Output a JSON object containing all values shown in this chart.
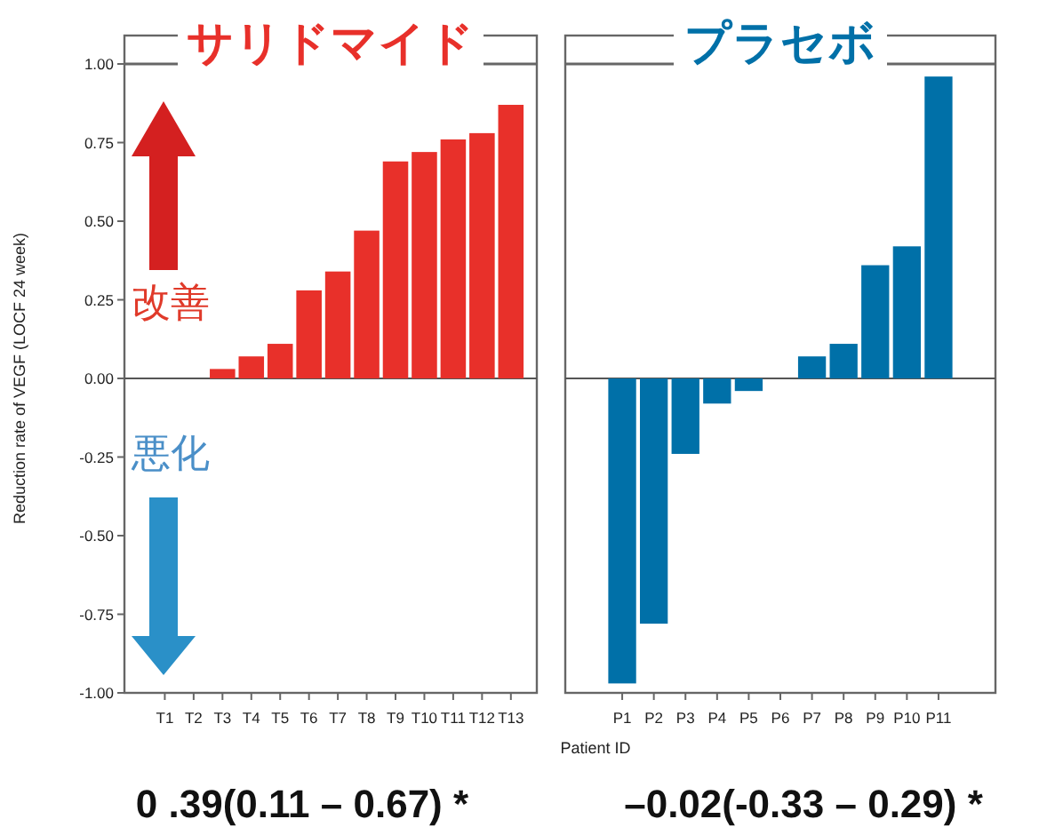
{
  "chart_data": [
    {
      "type": "bar",
      "title": "サリドマイド",
      "ylabel": "Reduction rate of VEGF (LOCF 24 week)",
      "xlabel": "Patient ID",
      "categories": [
        "T1",
        "T2",
        "T3",
        "T4",
        "T5",
        "T6",
        "T7",
        "T8",
        "T9",
        "T10",
        "T11",
        "T12",
        "T13"
      ],
      "values": [
        0,
        0,
        0.03,
        0.07,
        0.11,
        0.28,
        0.34,
        0.47,
        0.69,
        0.72,
        0.76,
        0.78,
        0.87
      ],
      "color": "#e8302a",
      "ylim": [
        -1,
        1
      ],
      "yticks": [
        {
          "value": -1,
          "label": "-1.00"
        },
        {
          "value": -0.75,
          "label": "-0.75"
        },
        {
          "value": -0.5,
          "label": "-0.50"
        },
        {
          "value": -0.25,
          "label": "-0.25"
        },
        {
          "value": 0,
          "label": "0.00"
        },
        {
          "value": 0.25,
          "label": "0.25"
        },
        {
          "value": 0.5,
          "label": "0.50"
        },
        {
          "value": 0.75,
          "label": "0.75"
        },
        {
          "value": 1,
          "label": "1.00"
        }
      ],
      "ref_lines": [
        {
          "axis": "y",
          "value": 0,
          "color": "#555555"
        }
      ],
      "annotations": [
        "改善",
        "悪化",
        "0 .39(0.11 – 0.67) *"
      ]
    },
    {
      "type": "bar",
      "title": "プラセボ",
      "categories": [
        "P1",
        "P2",
        "P3",
        "P4",
        "P5",
        "P6",
        "P7",
        "P8",
        "P9",
        "P10",
        "P11"
      ],
      "values": [
        -0.97,
        -0.78,
        -0.24,
        -0.08,
        -0.04,
        0,
        0.07,
        0.11,
        0.36,
        0.42,
        0.96
      ],
      "color": "#0070a8",
      "ylim": [
        -1,
        1
      ],
      "tick_labels": "x",
      "ref_lines": [
        {
          "axis": "y",
          "value": 0,
          "color": "#555555"
        }
      ],
      "annotations": [
        "–0.02(-0.33 – 0.29) *"
      ]
    }
  ]
}
